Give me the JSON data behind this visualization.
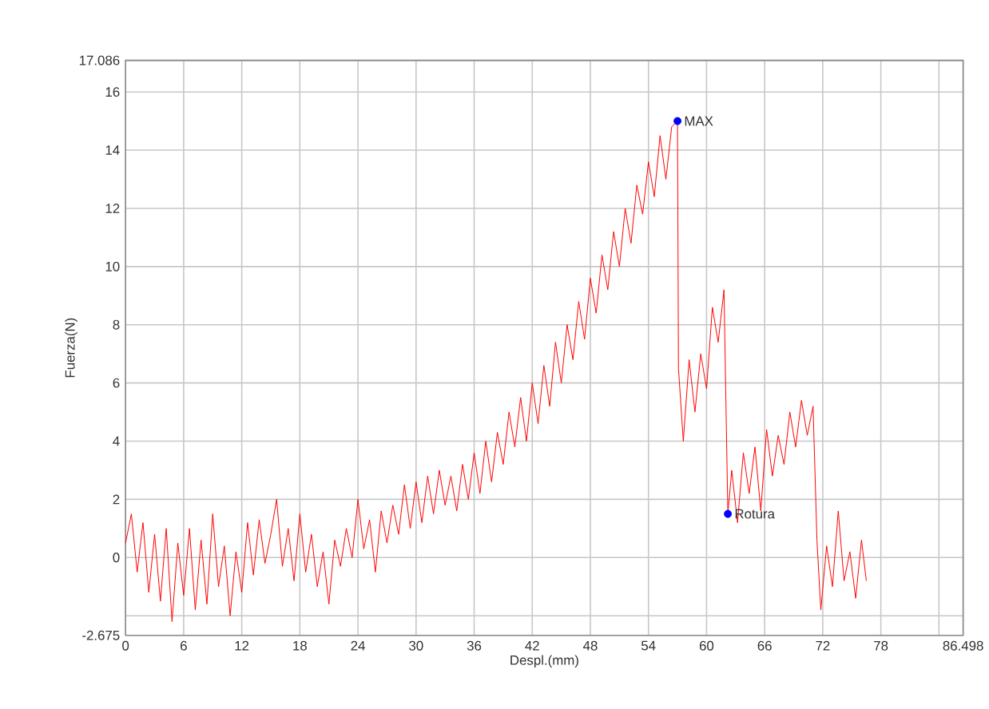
{
  "chart_data": {
    "type": "line",
    "xlabel": "Despl.(mm)",
    "ylabel": "Fuerza(N)",
    "xlim": [
      0,
      86.498
    ],
    "ylim": [
      -2.675,
      17.086
    ],
    "xticks": [
      0,
      6,
      12,
      18,
      24,
      30,
      36,
      42,
      48,
      54,
      60,
      66,
      72,
      78,
      {
        "value": 84,
        "label": null
      },
      86.498
    ],
    "yticks": [
      -2.675,
      {
        "value": -2,
        "label": null
      },
      0,
      2,
      4,
      6,
      8,
      10,
      12,
      14,
      16,
      17.086
    ],
    "grid": true,
    "series": [
      {
        "color": "#ff0000",
        "marker": "none",
        "x": [
          0,
          0.6,
          1.2,
          1.8,
          2.4,
          3,
          3.6,
          4.2,
          4.8,
          5.4,
          6,
          6.6,
          7.2,
          7.8,
          8.4,
          9,
          9.6,
          10.2,
          10.8,
          11.4,
          12,
          12.6,
          13.2,
          13.8,
          14.4,
          15,
          15.6,
          16.2,
          16.8,
          17.4,
          18,
          18.6,
          19.2,
          19.8,
          20.4,
          21,
          21.6,
          22.2,
          22.8,
          23.4,
          24,
          24.6,
          25.2,
          25.8,
          26.4,
          27,
          27.6,
          28.2,
          28.8,
          29.4,
          30,
          30.6,
          31.2,
          31.8,
          32.4,
          33,
          33.6,
          34.2,
          34.8,
          35.4,
          36,
          36.6,
          37.2,
          37.8,
          38.4,
          39,
          39.6,
          40.2,
          40.8,
          41.4,
          42,
          42.6,
          43.2,
          43.8,
          44.4,
          45,
          45.6,
          46.2,
          46.8,
          47.4,
          48,
          48.6,
          49.2,
          49.8,
          50.4,
          51,
          51.6,
          52.2,
          52.8,
          53.4,
          54,
          54.6,
          55.2,
          55.8,
          56.4,
          57,
          57.1,
          57.6,
          58.2,
          58.8,
          59.4,
          60,
          60.6,
          61.2,
          61.8,
          62.2,
          62.6,
          63.2,
          63.8,
          64.4,
          65,
          65.6,
          66.2,
          66.8,
          67.4,
          68,
          68.6,
          69.2,
          69.8,
          70.4,
          71,
          71.4,
          71.8,
          72.4,
          73,
          73.6,
          74.2,
          74.8,
          75.4,
          76,
          76.5
        ],
        "values": [
          0.5,
          1.5,
          -0.5,
          1.2,
          -1.2,
          0.8,
          -1.5,
          1.0,
          -2.2,
          0.5,
          -1.3,
          1.0,
          -1.8,
          0.6,
          -1.6,
          1.5,
          -1.0,
          0.4,
          -2.0,
          0.2,
          -1.2,
          1.2,
          -0.6,
          1.3,
          -0.2,
          0.8,
          2.0,
          -0.3,
          1.0,
          -0.8,
          1.5,
          -0.5,
          0.8,
          -1.0,
          0.2,
          -1.6,
          0.6,
          -0.3,
          1.0,
          0.0,
          2.0,
          0.3,
          1.3,
          -0.5,
          1.6,
          0.5,
          1.8,
          0.8,
          2.5,
          1.0,
          2.6,
          1.2,
          2.8,
          1.5,
          3.0,
          1.8,
          2.8,
          1.6,
          3.2,
          2.0,
          3.6,
          2.2,
          4.0,
          2.6,
          4.3,
          3.2,
          5.0,
          3.8,
          5.5,
          4.0,
          6.0,
          4.6,
          6.6,
          5.2,
          7.4,
          6.0,
          8.0,
          6.8,
          8.8,
          7.5,
          9.6,
          8.4,
          10.4,
          9.2,
          11.2,
          10.0,
          12.0,
          10.8,
          12.8,
          11.8,
          13.6,
          12.4,
          14.5,
          13.0,
          14.8,
          15.0,
          6.5,
          4.0,
          6.8,
          5.0,
          7.0,
          5.8,
          8.6,
          7.4,
          9.2,
          1.5,
          3.0,
          1.2,
          3.6,
          2.2,
          3.8,
          1.6,
          4.4,
          2.8,
          4.2,
          3.2,
          5.0,
          3.8,
          5.4,
          4.2,
          5.2,
          0.6,
          -1.8,
          0.4,
          -1.0,
          1.6,
          -0.8,
          0.2,
          -1.4,
          0.6,
          -0.8
        ]
      },
      {
        "type": "scatter",
        "name": "MAX",
        "color": "#0000ff",
        "marker": "circle",
        "x": [
          57
        ],
        "values": [
          15
        ]
      },
      {
        "type": "scatter",
        "name": "Rotura",
        "color": "#0000ff",
        "marker": "circle",
        "x": [
          62.2
        ],
        "values": [
          1.5
        ]
      }
    ]
  }
}
